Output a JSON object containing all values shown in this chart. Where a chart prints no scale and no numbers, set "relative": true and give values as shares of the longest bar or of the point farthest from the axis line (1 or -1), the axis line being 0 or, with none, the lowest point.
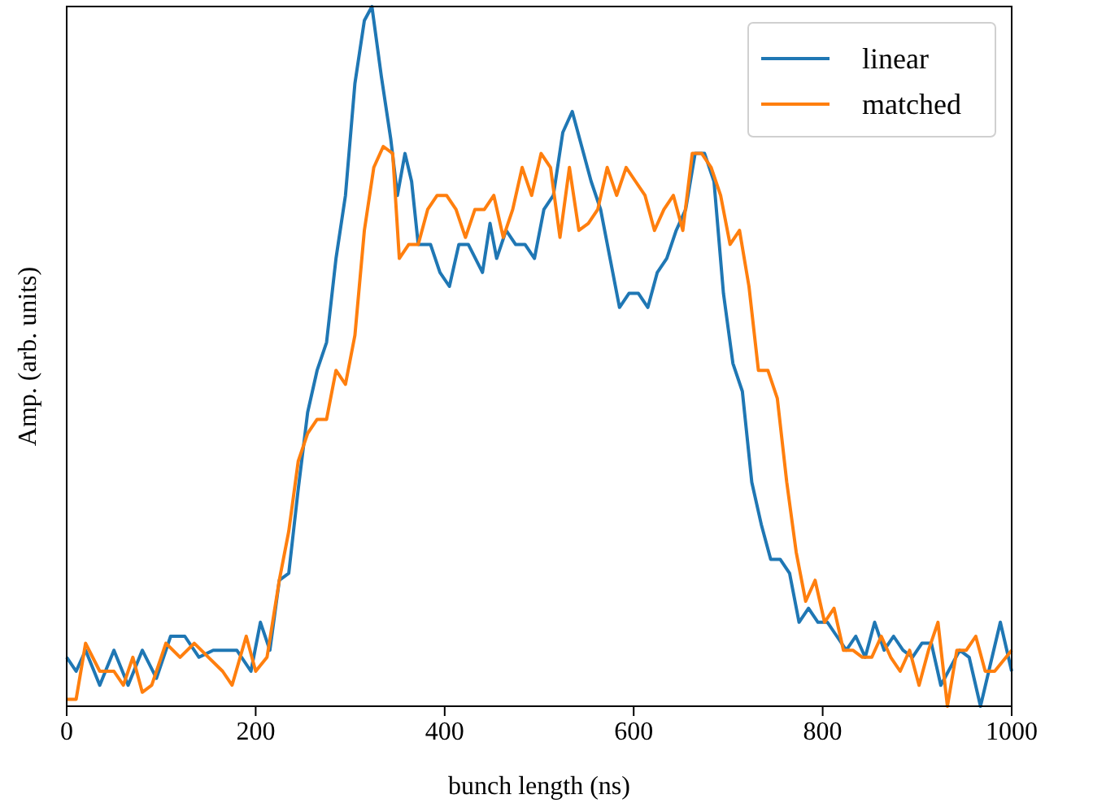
{
  "chart_data": {
    "type": "line",
    "relative": true,
    "xlabel": "bunch length (ns)",
    "ylabel": "Amp. (arb. units)",
    "xlim": [
      0,
      1000
    ],
    "xticks": [
      0,
      200,
      400,
      600,
      800,
      1000
    ],
    "legend": "top right",
    "grid": false,
    "series": [
      {
        "name": "linear",
        "color": "#1f77b4",
        "x": [
          0,
          10,
          20,
          35,
          50,
          65,
          80,
          95,
          110,
          125,
          140,
          155,
          180,
          195,
          205,
          215,
          225,
          235,
          245,
          255,
          265,
          275,
          285,
          295,
          305,
          315,
          323,
          333,
          343,
          350,
          358,
          365,
          372,
          385,
          395,
          405,
          415,
          425,
          440,
          448,
          455,
          465,
          475,
          485,
          495,
          505,
          515,
          525,
          535,
          545,
          555,
          565,
          575,
          585,
          595,
          605,
          615,
          625,
          635,
          645,
          655,
          665,
          675,
          685,
          695,
          705,
          715,
          725,
          735,
          745,
          755,
          765,
          775,
          785,
          795,
          805,
          815,
          825,
          835,
          845,
          855,
          865,
          875,
          885,
          895,
          905,
          915,
          925,
          945,
          955,
          967,
          988,
          1000
        ],
        "values": [
          0.07,
          0.05,
          0.08,
          0.03,
          0.08,
          0.03,
          0.08,
          0.04,
          0.1,
          0.1,
          0.07,
          0.08,
          0.08,
          0.05,
          0.12,
          0.08,
          0.18,
          0.19,
          0.31,
          0.42,
          0.48,
          0.52,
          0.64,
          0.73,
          0.89,
          0.98,
          1.0,
          0.9,
          0.81,
          0.73,
          0.79,
          0.75,
          0.66,
          0.66,
          0.62,
          0.6,
          0.66,
          0.66,
          0.62,
          0.69,
          0.64,
          0.68,
          0.66,
          0.66,
          0.64,
          0.71,
          0.73,
          0.82,
          0.85,
          0.8,
          0.75,
          0.71,
          0.64,
          0.57,
          0.59,
          0.59,
          0.57,
          0.62,
          0.64,
          0.68,
          0.71,
          0.79,
          0.79,
          0.75,
          0.59,
          0.49,
          0.45,
          0.32,
          0.26,
          0.21,
          0.21,
          0.19,
          0.12,
          0.14,
          0.12,
          0.12,
          0.1,
          0.08,
          0.1,
          0.07,
          0.12,
          0.08,
          0.1,
          0.08,
          0.07,
          0.09,
          0.09,
          0.03,
          0.08,
          0.07,
          0.0,
          0.12,
          0.05
        ]
      },
      {
        "name": "matched",
        "color": "#ff7f0e",
        "x": [
          0,
          10,
          20,
          35,
          50,
          60,
          70,
          80,
          90,
          105,
          120,
          135,
          150,
          165,
          175,
          190,
          200,
          212,
          225,
          235,
          245,
          255,
          265,
          275,
          285,
          295,
          305,
          315,
          325,
          335,
          345,
          352,
          362,
          372,
          382,
          392,
          402,
          412,
          422,
          432,
          442,
          452,
          462,
          472,
          482,
          492,
          502,
          512,
          522,
          532,
          542,
          552,
          562,
          572,
          582,
          592,
          602,
          612,
          622,
          632,
          642,
          652,
          662,
          672,
          682,
          692,
          702,
          712,
          722,
          732,
          742,
          752,
          762,
          772,
          782,
          792,
          802,
          812,
          822,
          832,
          842,
          852,
          862,
          872,
          882,
          892,
          902,
          912,
          922,
          932,
          942,
          952,
          962,
          972,
          982,
          1000
        ],
        "values": [
          0.01,
          0.01,
          0.09,
          0.05,
          0.05,
          0.03,
          0.07,
          0.02,
          0.03,
          0.09,
          0.07,
          0.09,
          0.07,
          0.05,
          0.03,
          0.1,
          0.05,
          0.07,
          0.18,
          0.25,
          0.35,
          0.39,
          0.41,
          0.41,
          0.48,
          0.46,
          0.53,
          0.68,
          0.77,
          0.8,
          0.79,
          0.64,
          0.66,
          0.66,
          0.71,
          0.73,
          0.73,
          0.71,
          0.67,
          0.71,
          0.71,
          0.73,
          0.67,
          0.71,
          0.77,
          0.73,
          0.79,
          0.77,
          0.67,
          0.77,
          0.68,
          0.69,
          0.71,
          0.77,
          0.73,
          0.77,
          0.75,
          0.73,
          0.68,
          0.71,
          0.73,
          0.68,
          0.79,
          0.79,
          0.77,
          0.73,
          0.66,
          0.68,
          0.6,
          0.48,
          0.48,
          0.44,
          0.32,
          0.22,
          0.15,
          0.18,
          0.12,
          0.14,
          0.08,
          0.08,
          0.07,
          0.07,
          0.1,
          0.07,
          0.05,
          0.08,
          0.03,
          0.08,
          0.12,
          0.0,
          0.08,
          0.08,
          0.1,
          0.05,
          0.05,
          0.08
        ]
      }
    ]
  }
}
